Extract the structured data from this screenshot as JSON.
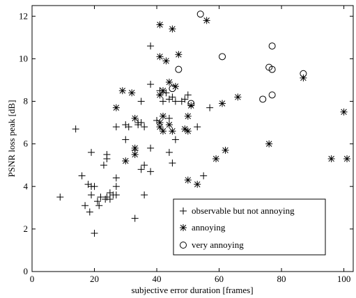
{
  "chart_data": {
    "type": "scatter",
    "xlabel": "subjective error duration [frames]",
    "ylabel": "PSNR loss peak [dB]",
    "xlim": [
      0,
      103
    ],
    "ylim": [
      0,
      12.5
    ],
    "xticks": [
      0,
      20,
      40,
      60,
      80,
      100
    ],
    "yticks": [
      0,
      2,
      4,
      6,
      8,
      10,
      12
    ],
    "grid": false,
    "legend_position": "bottom-right",
    "series": [
      {
        "name": "observable but not annoying",
        "marker": "plus",
        "points": [
          [
            9,
            3.5
          ],
          [
            14,
            6.7
          ],
          [
            16,
            4.5
          ],
          [
            17,
            3.1
          ],
          [
            18,
            4.1
          ],
          [
            18.5,
            2.8
          ],
          [
            19,
            5.6
          ],
          [
            19,
            4.0
          ],
          [
            19,
            3.6
          ],
          [
            20,
            4.0
          ],
          [
            20,
            1.8
          ],
          [
            21,
            3.3
          ],
          [
            21.5,
            3.1
          ],
          [
            22,
            3.5
          ],
          [
            23,
            5.0
          ],
          [
            23.5,
            3.4
          ],
          [
            24,
            5.5
          ],
          [
            24,
            5.3
          ],
          [
            24,
            3.5
          ],
          [
            25,
            3.4
          ],
          [
            25,
            3.7
          ],
          [
            26,
            3.6
          ],
          [
            27,
            4.4
          ],
          [
            27,
            4.0
          ],
          [
            27,
            3.6
          ],
          [
            27,
            6.8
          ],
          [
            30,
            6.2
          ],
          [
            30,
            6.9
          ],
          [
            31,
            6.8
          ],
          [
            33,
            2.5
          ],
          [
            33,
            5.7
          ],
          [
            34,
            6.9
          ],
          [
            34,
            7.0
          ],
          [
            35,
            8.0
          ],
          [
            35,
            7.0
          ],
          [
            35,
            4.8
          ],
          [
            36,
            6.8
          ],
          [
            36,
            5.0
          ],
          [
            36,
            3.6
          ],
          [
            38,
            10.6
          ],
          [
            38,
            8.8
          ],
          [
            38,
            5.8
          ],
          [
            38,
            4.7
          ],
          [
            40,
            7.1
          ],
          [
            41,
            8.5
          ],
          [
            41,
            8.3
          ],
          [
            42,
            8.0
          ],
          [
            43,
            8.4
          ],
          [
            44,
            8.1
          ],
          [
            44,
            7.2
          ],
          [
            44,
            5.6
          ],
          [
            45,
            5.1
          ],
          [
            45,
            8.2
          ],
          [
            46,
            8.0
          ],
          [
            46,
            6.2
          ],
          [
            48,
            8.0
          ],
          [
            49,
            8.1
          ],
          [
            50,
            8.3
          ],
          [
            53,
            6.8
          ],
          [
            55,
            4.5
          ],
          [
            57,
            7.7
          ]
        ]
      },
      {
        "name": "annoying",
        "marker": "star",
        "points": [
          [
            27,
            7.7
          ],
          [
            29,
            8.5
          ],
          [
            30,
            5.2
          ],
          [
            32,
            8.4
          ],
          [
            33,
            7.2
          ],
          [
            33,
            5.8
          ],
          [
            33,
            5.5
          ],
          [
            41,
            11.6
          ],
          [
            41,
            10.1
          ],
          [
            41,
            8.3
          ],
          [
            41,
            7.0
          ],
          [
            41,
            6.8
          ],
          [
            42,
            8.5
          ],
          [
            42,
            7.3
          ],
          [
            42,
            6.6
          ],
          [
            43,
            9.9
          ],
          [
            44,
            8.9
          ],
          [
            44,
            6.9
          ],
          [
            45,
            11.4
          ],
          [
            45,
            6.6
          ],
          [
            46,
            8.7
          ],
          [
            47,
            10.2
          ],
          [
            49,
            6.7
          ],
          [
            50,
            6.6
          ],
          [
            50,
            7.3
          ],
          [
            50,
            4.3
          ],
          [
            51,
            7.8
          ],
          [
            53,
            4.1
          ],
          [
            56,
            11.8
          ],
          [
            59,
            5.3
          ],
          [
            61,
            7.9
          ],
          [
            62,
            5.7
          ],
          [
            66,
            8.2
          ],
          [
            76,
            6.0
          ],
          [
            87,
            9.1
          ],
          [
            96,
            5.3
          ],
          [
            100,
            7.5
          ],
          [
            101,
            5.3
          ]
        ]
      },
      {
        "name": "very annoying",
        "marker": "circle",
        "points": [
          [
            45,
            8.6
          ],
          [
            47,
            9.5
          ],
          [
            51,
            7.9
          ],
          [
            54,
            12.1
          ],
          [
            61,
            10.1
          ],
          [
            74,
            8.1
          ],
          [
            76,
            9.6
          ],
          [
            77,
            10.6
          ],
          [
            77,
            9.5
          ],
          [
            77,
            8.3
          ],
          [
            87,
            9.3
          ]
        ]
      }
    ]
  }
}
